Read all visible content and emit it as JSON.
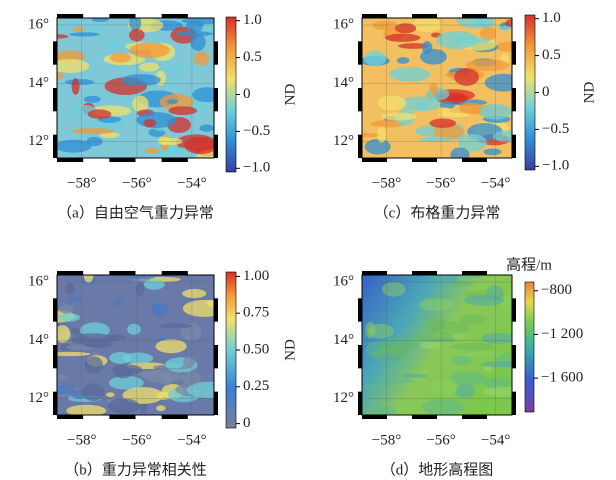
{
  "panels": [
    {
      "caption": "（a）自由空气重力异常",
      "xlim": [
        -58.9,
        -53.2
      ],
      "ylim": [
        11.44,
        16.24
      ],
      "xticks": [
        {
          "value": -58,
          "label": "−58°"
        },
        {
          "value": -56,
          "label": "−56°"
        },
        {
          "value": -54,
          "label": "−54°"
        }
      ],
      "yticks": [
        {
          "value": 16,
          "label": "16°"
        },
        {
          "value": 14,
          "label": "14°"
        },
        {
          "value": 12,
          "label": "12°"
        }
      ],
      "colorbar": {
        "label": "ND",
        "lim": [
          -1.05,
          1.05
        ],
        "ticks": [
          {
            "value": 1,
            "label": "1.0"
          },
          0.5,
          0,
          {
            "value": -0.5,
            "label": "−0.5"
          },
          {
            "value": -1,
            "label": "−1.0"
          }
        ]
      }
    },
    {
      "caption": "（c）布格重力异常",
      "xlim": [
        -58.9,
        -53.4
      ],
      "ylim": [
        11.44,
        16.24
      ],
      "xticks": [
        {
          "value": -58,
          "label": "−58°"
        },
        {
          "value": -56,
          "label": "−56°"
        },
        {
          "value": -54,
          "label": "−54°"
        }
      ],
      "yticks": [
        {
          "value": 16,
          "label": "16°"
        },
        {
          "value": 14,
          "label": "14°"
        },
        {
          "value": 12,
          "label": "12°"
        }
      ],
      "colorbar": {
        "label": "ND",
        "lim": [
          -1.05,
          1.05
        ],
        "ticks": [
          {
            "value": 1,
            "label": "1.0"
          },
          0.5,
          0,
          {
            "value": -0.5,
            "label": "−0.5"
          },
          {
            "value": -1,
            "label": "−1.0"
          }
        ]
      }
    },
    {
      "caption": "（b）重力异常相关性",
      "xlim": [
        -58.9,
        -53.2
      ],
      "ylim": [
        11.44,
        16.24
      ],
      "xticks": [
        {
          "value": -58,
          "label": "−58°"
        },
        {
          "value": -56,
          "label": "−56°"
        },
        {
          "value": -54,
          "label": "−54°"
        }
      ],
      "yticks": [
        {
          "value": 16,
          "label": "16°"
        },
        {
          "value": 14,
          "label": "14°"
        },
        {
          "value": 12,
          "label": "12°"
        }
      ],
      "colorbar": {
        "label": "ND",
        "lim": [
          -0.03,
          1.03
        ],
        "ticks": [
          {
            "value": 1,
            "label": "1.00"
          },
          0.75,
          {
            "value": 0.5,
            "label": "0.50"
          },
          0.25,
          0
        ]
      }
    },
    {
      "caption": "（d）地形高程图",
      "xlim": [
        -58.9,
        -53.4
      ],
      "ylim": [
        11.44,
        16.24
      ],
      "xticks": [
        {
          "value": -58,
          "label": "−58°"
        },
        {
          "value": -56,
          "label": "−56°"
        },
        {
          "value": -54,
          "label": "−54°"
        }
      ],
      "yticks": [
        {
          "value": 16,
          "label": "16°"
        },
        {
          "value": 14,
          "label": "14°"
        },
        {
          "value": 12,
          "label": "12°"
        }
      ],
      "colorbar": {
        "label": "高程/m",
        "lim": [
          -1910,
          -720
        ],
        "ticks": [
          {
            "value": -800,
            "label": "−800"
          },
          {
            "value": -1200,
            "label": "−1 200"
          },
          {
            "value": -1600,
            "label": "−1 600"
          }
        ]
      }
    }
  ]
}
